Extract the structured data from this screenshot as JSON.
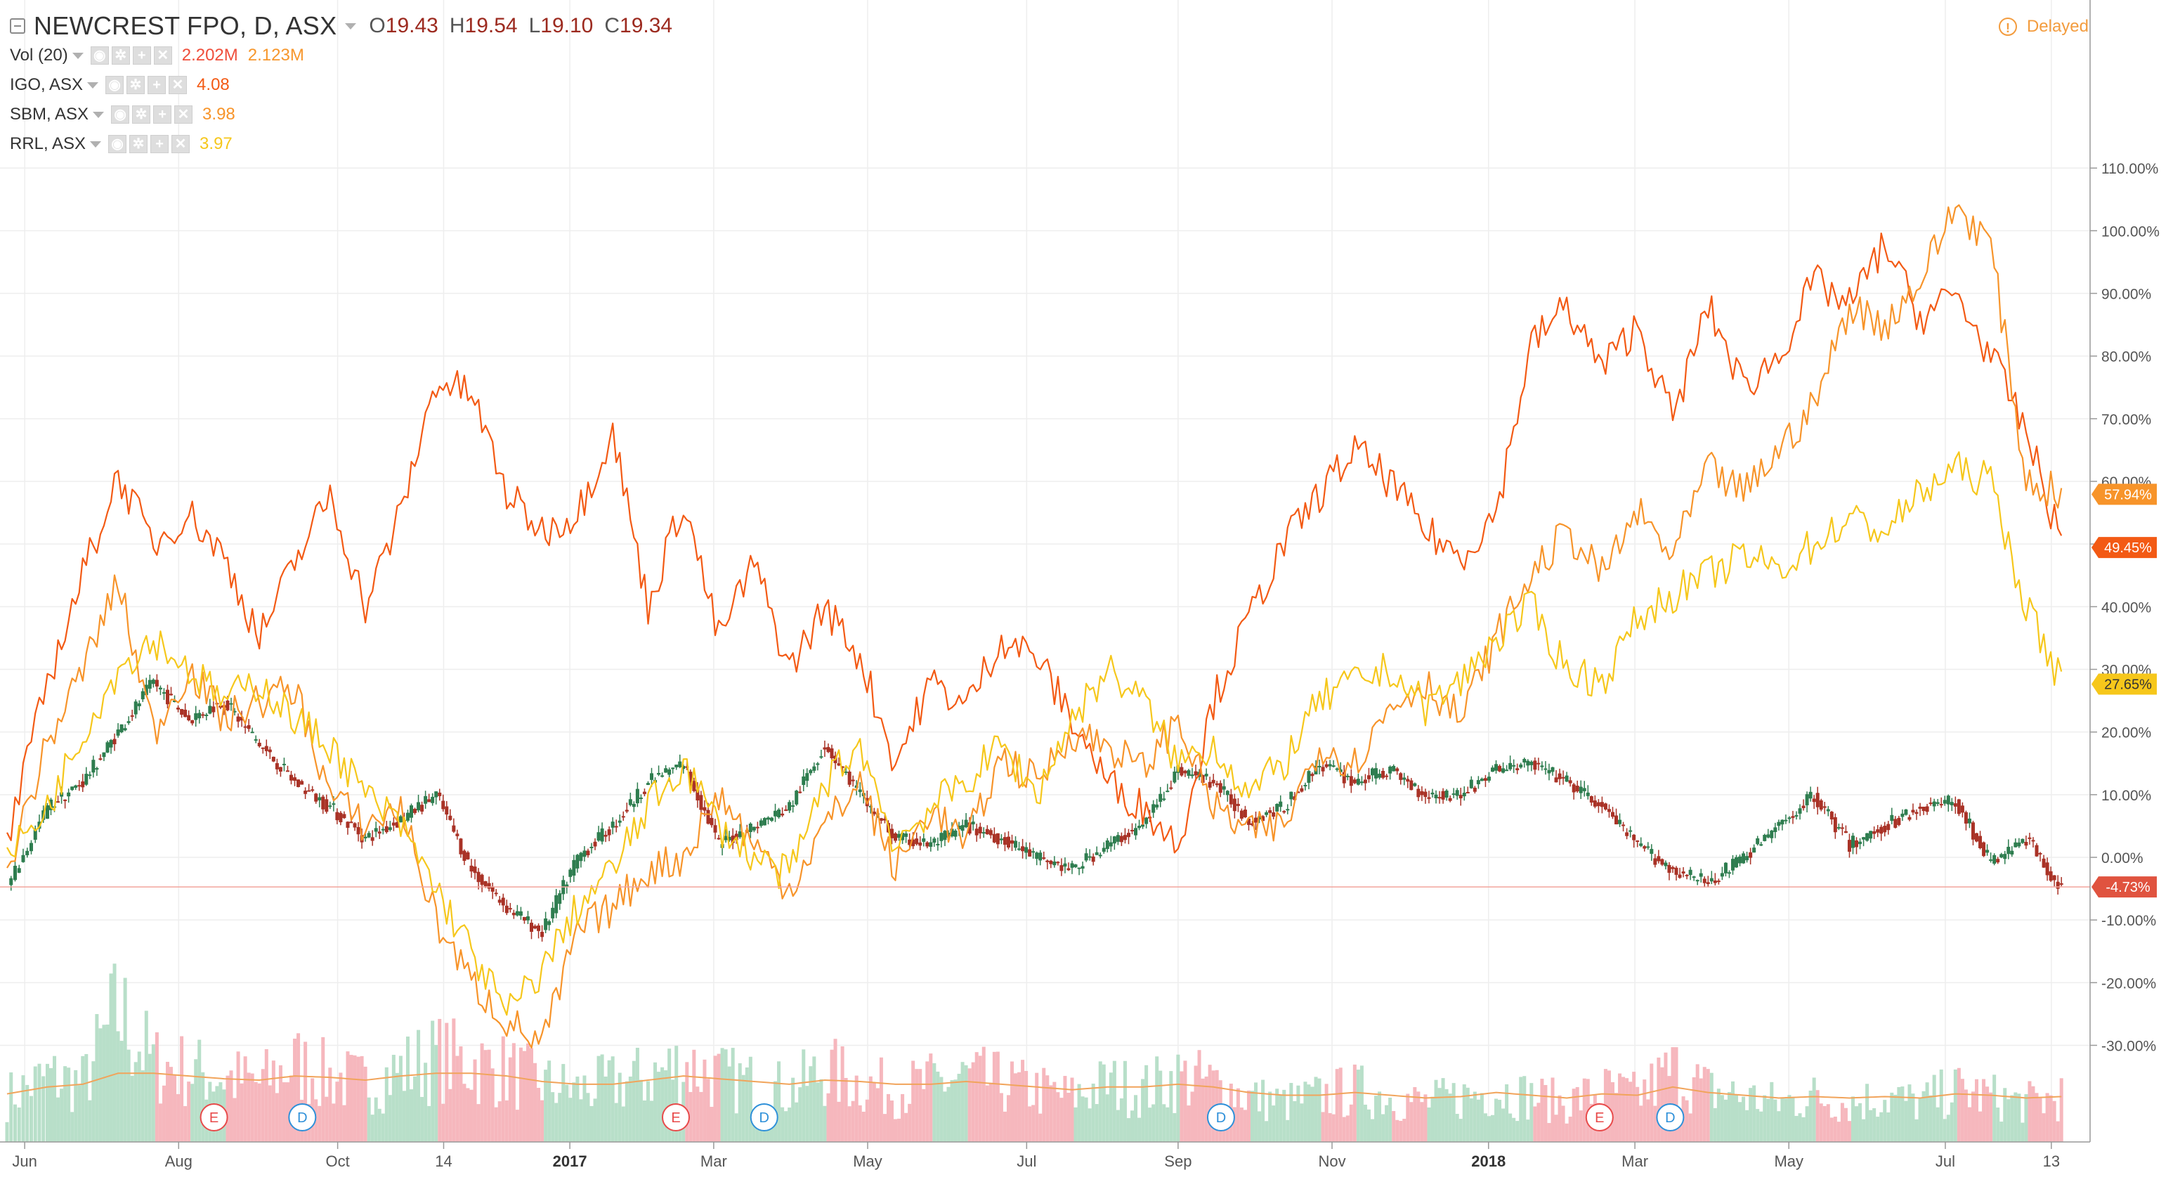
{
  "header": {
    "symbol_title": "NEWCREST FPO, D, ASX",
    "ohlc": [
      {
        "key": "O",
        "value": "19.43"
      },
      {
        "key": "H",
        "value": "19.54"
      },
      {
        "key": "L",
        "value": "19.10"
      },
      {
        "key": "C",
        "value": "19.34"
      }
    ],
    "delayed_label": "Delayed"
  },
  "studies": [
    {
      "name": "Vol (20)",
      "values": [
        "2.202M",
        "2.123M"
      ],
      "colors": [
        "#ef4f3c",
        "#f7972d"
      ]
    },
    {
      "name": "IGO, ASX",
      "values": [
        "4.08"
      ],
      "colors": [
        "#f35a14"
      ]
    },
    {
      "name": "SBM, ASX",
      "values": [
        "3.98"
      ],
      "colors": [
        "#f7942a"
      ]
    },
    {
      "name": "RRL, ASX",
      "values": [
        "3.97"
      ],
      "colors": [
        "#f6c71b"
      ]
    }
  ],
  "colors": {
    "up": "#2e7d4f",
    "down": "#a93226",
    "vol_up": "#b8dfc9",
    "vol_down": "#f6b7bd",
    "igo": "#f35a14",
    "sbm": "#f7942a",
    "rrl": "#f6c71b",
    "grid": "#eeeeee",
    "event_e": "#e84a4a",
    "event_d": "#2e90d9"
  },
  "chart_data": {
    "type": "line",
    "title": "NEWCREST FPO, D, ASX",
    "y_scale": "percent",
    "ylim": [
      -37,
      112
    ],
    "y_ticks": [
      "110.00%",
      "100.00%",
      "90.00%",
      "80.00%",
      "70.00%",
      "60.00%",
      "50.00%",
      "40.00%",
      "30.00%",
      "20.00%",
      "10.00%",
      "0.00%",
      "-10.00%",
      "-20.00%",
      "-30.00%"
    ],
    "x_ticks": [
      {
        "label": "Jun",
        "date": "2016-06-01",
        "bold": false
      },
      {
        "label": "Aug",
        "date": "2016-08-01",
        "bold": false
      },
      {
        "label": "Oct",
        "date": "2016-10-03",
        "bold": false
      },
      {
        "label": "14",
        "date": "2016-11-14",
        "bold": false
      },
      {
        "label": "2017",
        "date": "2017-01-03",
        "bold": true
      },
      {
        "label": "Mar",
        "date": "2017-03-01",
        "bold": false
      },
      {
        "label": "May",
        "date": "2017-05-01",
        "bold": false
      },
      {
        "label": "Jul",
        "date": "2017-07-03",
        "bold": false
      },
      {
        "label": "Sep",
        "date": "2017-09-01",
        "bold": false
      },
      {
        "label": "Nov",
        "date": "2017-11-01",
        "bold": false
      },
      {
        "label": "2018",
        "date": "2018-01-02",
        "bold": true
      },
      {
        "label": "Mar",
        "date": "2018-03-01",
        "bold": false
      },
      {
        "label": "May",
        "date": "2018-05-01",
        "bold": false
      },
      {
        "label": "Jul",
        "date": "2018-07-02",
        "bold": false
      },
      {
        "label": "13",
        "date": "2018-08-13",
        "bold": false
      }
    ],
    "x_range": [
      "2016-05-25",
      "2018-08-20"
    ],
    "grid": true,
    "events": [
      {
        "label": "E",
        "date": "2016-08-15"
      },
      {
        "label": "D",
        "date": "2016-09-19"
      },
      {
        "label": "E",
        "date": "2017-02-14"
      },
      {
        "label": "D",
        "date": "2017-03-21"
      },
      {
        "label": "D",
        "date": "2017-09-18"
      },
      {
        "label": "E",
        "date": "2018-02-15"
      },
      {
        "label": "D",
        "date": "2018-03-15"
      }
    ],
    "series": [
      {
        "name": "IGO, ASX",
        "color": "#f35a14",
        "last_label": "49.45%",
        "x": [
          "2016-05-25",
          "2016-06-10",
          "2016-06-24",
          "2016-07-08",
          "2016-07-22",
          "2016-08-05",
          "2016-08-19",
          "2016-09-02",
          "2016-09-16",
          "2016-09-30",
          "2016-10-14",
          "2016-10-28",
          "2016-11-11",
          "2016-11-25",
          "2016-12-09",
          "2016-12-23",
          "2017-01-06",
          "2017-01-20",
          "2017-02-03",
          "2017-02-17",
          "2017-03-03",
          "2017-03-17",
          "2017-03-31",
          "2017-04-14",
          "2017-04-28",
          "2017-05-12",
          "2017-05-26",
          "2017-06-09",
          "2017-06-23",
          "2017-07-07",
          "2017-07-21",
          "2017-08-04",
          "2017-08-18",
          "2017-09-01",
          "2017-09-15",
          "2017-09-29",
          "2017-10-13",
          "2017-10-27",
          "2017-11-10",
          "2017-11-24",
          "2017-12-08",
          "2017-12-22",
          "2018-01-05",
          "2018-01-19",
          "2018-02-02",
          "2018-02-16",
          "2018-03-02",
          "2018-03-16",
          "2018-03-30",
          "2018-04-13",
          "2018-04-27",
          "2018-05-11",
          "2018-05-25",
          "2018-06-08",
          "2018-06-22",
          "2018-07-06",
          "2018-07-20",
          "2018-08-03",
          "2018-08-17"
        ],
        "y": [
          2,
          28,
          45,
          61,
          50,
          55,
          48,
          35,
          47,
          58,
          40,
          55,
          76,
          74,
          58,
          52,
          55,
          68,
          40,
          57,
          35,
          47,
          30,
          40,
          32,
          15,
          28,
          24,
          35,
          32,
          22,
          12,
          8,
          2,
          25,
          38,
          50,
          58,
          65,
          60,
          52,
          48,
          55,
          82,
          88,
          78,
          85,
          70,
          88,
          75,
          80,
          92,
          88,
          98,
          86,
          90,
          80,
          68,
          50
        ]
      },
      {
        "name": "SBM, ASX",
        "color": "#f7942a",
        "last_label": "57.94%",
        "x": [
          "2016-05-25",
          "2016-06-10",
          "2016-06-24",
          "2016-07-08",
          "2016-07-22",
          "2016-08-05",
          "2016-08-19",
          "2016-09-02",
          "2016-09-16",
          "2016-09-30",
          "2016-10-14",
          "2016-10-28",
          "2016-11-11",
          "2016-11-25",
          "2016-12-09",
          "2016-12-23",
          "2017-01-06",
          "2017-01-20",
          "2017-02-03",
          "2017-02-17",
          "2017-03-03",
          "2017-03-17",
          "2017-03-31",
          "2017-04-14",
          "2017-04-28",
          "2017-05-12",
          "2017-05-26",
          "2017-06-09",
          "2017-06-23",
          "2017-07-07",
          "2017-07-21",
          "2017-08-04",
          "2017-08-18",
          "2017-09-01",
          "2017-09-15",
          "2017-09-29",
          "2017-10-13",
          "2017-10-27",
          "2017-11-10",
          "2017-11-24",
          "2017-12-08",
          "2017-12-22",
          "2018-01-05",
          "2018-01-19",
          "2018-02-02",
          "2018-02-16",
          "2018-03-02",
          "2018-03-16",
          "2018-03-30",
          "2018-04-13",
          "2018-04-27",
          "2018-05-11",
          "2018-05-25",
          "2018-06-08",
          "2018-06-22",
          "2018-07-06",
          "2018-07-20",
          "2018-08-03",
          "2018-08-17"
        ],
        "y": [
          -2,
          18,
          30,
          44,
          20,
          30,
          22,
          25,
          27,
          10,
          5,
          8,
          -10,
          -20,
          -26,
          -30,
          -12,
          -8,
          -2,
          0,
          10,
          2,
          -5,
          5,
          12,
          -2,
          8,
          2,
          16,
          12,
          20,
          18,
          14,
          22,
          8,
          4,
          5,
          18,
          15,
          24,
          28,
          22,
          35,
          45,
          52,
          45,
          55,
          48,
          62,
          58,
          65,
          72,
          88,
          85,
          92,
          104,
          98,
          60,
          58
        ]
      },
      {
        "name": "RRL, ASX",
        "color": "#f6c71b",
        "last_label": "27.65%",
        "x": [
          "2016-05-25",
          "2016-06-10",
          "2016-06-24",
          "2016-07-08",
          "2016-07-22",
          "2016-08-05",
          "2016-08-19",
          "2016-09-02",
          "2016-09-16",
          "2016-09-30",
          "2016-10-14",
          "2016-10-28",
          "2016-11-11",
          "2016-11-25",
          "2016-12-09",
          "2016-12-23",
          "2017-01-06",
          "2017-01-20",
          "2017-02-03",
          "2017-02-17",
          "2017-03-03",
          "2017-03-17",
          "2017-03-31",
          "2017-04-14",
          "2017-04-28",
          "2017-05-12",
          "2017-05-26",
          "2017-06-09",
          "2017-06-23",
          "2017-07-07",
          "2017-07-21",
          "2017-08-04",
          "2017-08-18",
          "2017-09-01",
          "2017-09-15",
          "2017-09-29",
          "2017-10-13",
          "2017-10-27",
          "2017-11-10",
          "2017-11-24",
          "2017-12-08",
          "2017-12-22",
          "2018-01-05",
          "2018-01-19",
          "2018-02-02",
          "2018-02-16",
          "2018-03-02",
          "2018-03-16",
          "2018-03-30",
          "2018-04-13",
          "2018-04-27",
          "2018-05-11",
          "2018-05-25",
          "2018-06-08",
          "2018-06-22",
          "2018-07-06",
          "2018-07-20",
          "2018-08-03",
          "2018-08-17"
        ],
        "y": [
          0,
          8,
          20,
          30,
          35,
          30,
          25,
          28,
          22,
          18,
          10,
          5,
          -5,
          -15,
          -25,
          -18,
          -8,
          -2,
          8,
          15,
          5,
          0,
          -3,
          12,
          18,
          2,
          8,
          12,
          18,
          10,
          22,
          30,
          25,
          15,
          18,
          10,
          15,
          25,
          28,
          30,
          24,
          28,
          35,
          40,
          30,
          28,
          38,
          42,
          45,
          48,
          46,
          50,
          54,
          52,
          58,
          62,
          60,
          40,
          28
        ]
      },
      {
        "name": "NEWCREST FPO",
        "color": "#2e7d4f",
        "last_label": "-4.73%",
        "x": [
          "2016-05-25",
          "2016-06-10",
          "2016-06-24",
          "2016-07-08",
          "2016-07-22",
          "2016-08-05",
          "2016-08-19",
          "2016-09-02",
          "2016-09-16",
          "2016-09-30",
          "2016-10-14",
          "2016-10-28",
          "2016-11-11",
          "2016-11-25",
          "2016-12-09",
          "2016-12-23",
          "2017-01-06",
          "2017-01-20",
          "2017-02-03",
          "2017-02-17",
          "2017-03-03",
          "2017-03-17",
          "2017-03-31",
          "2017-04-14",
          "2017-04-28",
          "2017-05-12",
          "2017-05-26",
          "2017-06-09",
          "2017-06-23",
          "2017-07-07",
          "2017-07-21",
          "2017-08-04",
          "2017-08-18",
          "2017-09-01",
          "2017-09-15",
          "2017-09-29",
          "2017-10-13",
          "2017-10-27",
          "2017-11-10",
          "2017-11-24",
          "2017-12-08",
          "2017-12-22",
          "2018-01-05",
          "2018-01-19",
          "2018-02-02",
          "2018-02-16",
          "2018-03-02",
          "2018-03-16",
          "2018-03-30",
          "2018-04-13",
          "2018-04-27",
          "2018-05-11",
          "2018-05-25",
          "2018-06-08",
          "2018-06-22",
          "2018-07-06",
          "2018-07-20",
          "2018-08-03",
          "2018-08-17"
        ],
        "y": [
          -5,
          8,
          12,
          20,
          28,
          22,
          25,
          18,
          12,
          8,
          3,
          6,
          10,
          -2,
          -8,
          -12,
          0,
          5,
          12,
          15,
          2,
          5,
          8,
          18,
          10,
          3,
          2,
          5,
          3,
          0,
          -2,
          2,
          5,
          14,
          12,
          6,
          8,
          15,
          12,
          14,
          10,
          10,
          14,
          15,
          12,
          8,
          2,
          -2,
          -4,
          0,
          5,
          10,
          2,
          5,
          8,
          9,
          -1,
          3,
          -5
        ]
      }
    ],
    "volume": {
      "name": "Vol (20)",
      "x": [
        "2016-05-25",
        "2016-06-10",
        "2016-06-24",
        "2016-07-08",
        "2016-07-22",
        "2016-08-05",
        "2016-08-19",
        "2016-09-02",
        "2016-09-16",
        "2016-09-30",
        "2016-10-14",
        "2016-10-28",
        "2016-11-11",
        "2016-11-25",
        "2016-12-09",
        "2016-12-23",
        "2017-01-06",
        "2017-01-20",
        "2017-02-03",
        "2017-02-17",
        "2017-03-03",
        "2017-03-17",
        "2017-03-31",
        "2017-04-14",
        "2017-04-28",
        "2017-05-12",
        "2017-05-26",
        "2017-06-09",
        "2017-06-23",
        "2017-07-07",
        "2017-07-21",
        "2017-08-04",
        "2017-08-18",
        "2017-09-01",
        "2017-09-15",
        "2017-09-29",
        "2017-10-13",
        "2017-10-27",
        "2017-11-10",
        "2017-11-24",
        "2017-12-08",
        "2017-12-22",
        "2018-01-05",
        "2018-01-19",
        "2018-02-02",
        "2018-02-16",
        "2018-03-02",
        "2018-03-16",
        "2018-03-30",
        "2018-04-13",
        "2018-04-27",
        "2018-05-11",
        "2018-05-25",
        "2018-06-08",
        "2018-06-22",
        "2018-07-06",
        "2018-07-20",
        "2018-08-03",
        "2018-08-17"
      ],
      "relative": [
        0.35,
        0.5,
        0.45,
        1.0,
        0.6,
        0.55,
        0.5,
        0.45,
        0.6,
        0.5,
        0.45,
        0.55,
        0.65,
        0.6,
        0.55,
        0.45,
        0.4,
        0.45,
        0.5,
        0.6,
        0.5,
        0.45,
        0.4,
        0.55,
        0.45,
        0.4,
        0.45,
        0.5,
        0.45,
        0.4,
        0.35,
        0.45,
        0.4,
        0.5,
        0.45,
        0.35,
        0.3,
        0.35,
        0.4,
        0.35,
        0.3,
        0.35,
        0.4,
        0.35,
        0.3,
        0.4,
        0.35,
        0.55,
        0.4,
        0.35,
        0.3,
        0.35,
        0.3,
        0.35,
        0.3,
        0.4,
        0.35,
        0.3,
        0.35
      ],
      "ma_relative": [
        0.35,
        0.4,
        0.42,
        0.5,
        0.5,
        0.48,
        0.46,
        0.45,
        0.48,
        0.47,
        0.45,
        0.48,
        0.5,
        0.5,
        0.48,
        0.44,
        0.42,
        0.42,
        0.45,
        0.48,
        0.46,
        0.44,
        0.42,
        0.45,
        0.44,
        0.42,
        0.42,
        0.44,
        0.42,
        0.4,
        0.38,
        0.4,
        0.4,
        0.42,
        0.4,
        0.36,
        0.34,
        0.34,
        0.36,
        0.34,
        0.32,
        0.33,
        0.36,
        0.34,
        0.32,
        0.35,
        0.34,
        0.4,
        0.36,
        0.34,
        0.32,
        0.33,
        0.32,
        0.33,
        0.32,
        0.35,
        0.34,
        0.32,
        0.33
      ]
    }
  }
}
